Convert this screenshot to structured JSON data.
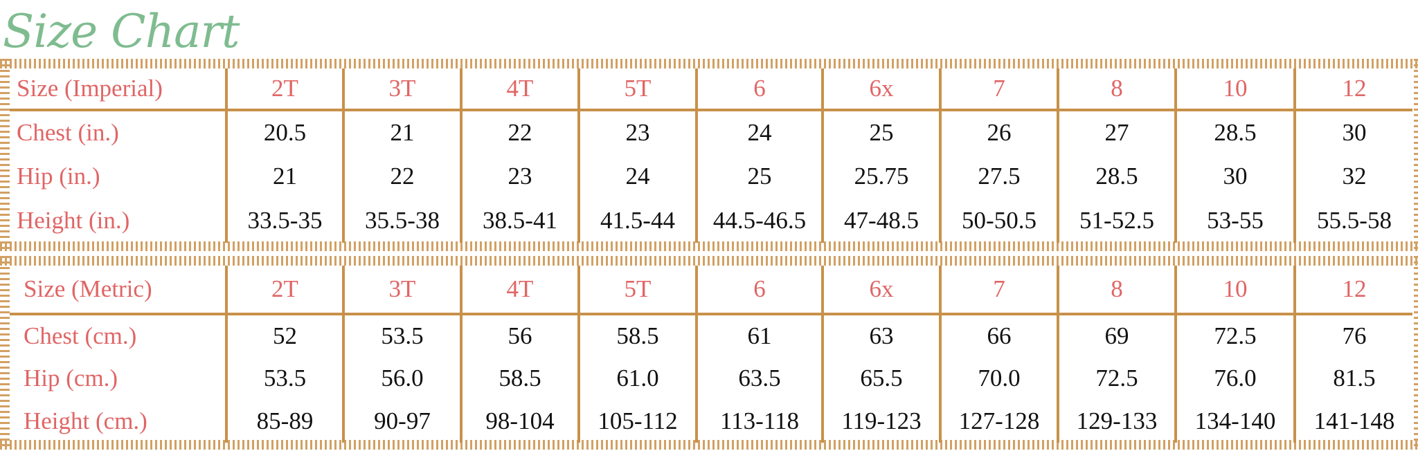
{
  "title": "Size Chart",
  "colors": {
    "title": "#7fbc90",
    "label": "#e06565",
    "rule": "#c8914a",
    "value": "#111111"
  },
  "imperial": {
    "header": "Size (Imperial)",
    "sizes": [
      "2T",
      "3T",
      "4T",
      "5T",
      "6",
      "6x",
      "7",
      "8",
      "10",
      "12"
    ],
    "rows": [
      {
        "label": "Chest (in.)",
        "values": [
          "20.5",
          "21",
          "22",
          "23",
          "24",
          "25",
          "26",
          "27",
          "28.5",
          "30"
        ]
      },
      {
        "label": "Hip (in.)",
        "values": [
          "21",
          "22",
          "23",
          "24",
          "25",
          "25.75",
          "27.5",
          "28.5",
          "30",
          "32"
        ]
      },
      {
        "label": "Height (in.)",
        "values": [
          "33.5-35",
          "35.5-38",
          "38.5-41",
          "41.5-44",
          "44.5-46.5",
          "47-48.5",
          "50-50.5",
          "51-52.5",
          "53-55",
          "55.5-58"
        ]
      }
    ]
  },
  "metric": {
    "header": "Size (Metric)",
    "sizes": [
      "2T",
      "3T",
      "4T",
      "5T",
      "6",
      "6x",
      "7",
      "8",
      "10",
      "12"
    ],
    "rows": [
      {
        "label": "Chest (cm.)",
        "values": [
          "52",
          "53.5",
          "56",
          "58.5",
          "61",
          "63",
          "66",
          "69",
          "72.5",
          "76"
        ]
      },
      {
        "label": "Hip (cm.)",
        "values": [
          "53.5",
          "56.0",
          "58.5",
          "61.0",
          "63.5",
          "65.5",
          "70.0",
          "72.5",
          "76.0",
          "81.5"
        ]
      },
      {
        "label": "Height (cm.)",
        "values": [
          "85-89",
          "90-97",
          "98-104",
          "105-112",
          "113-118",
          "119-123",
          "127-128",
          "129-133",
          "134-140",
          "141-148"
        ]
      }
    ]
  }
}
